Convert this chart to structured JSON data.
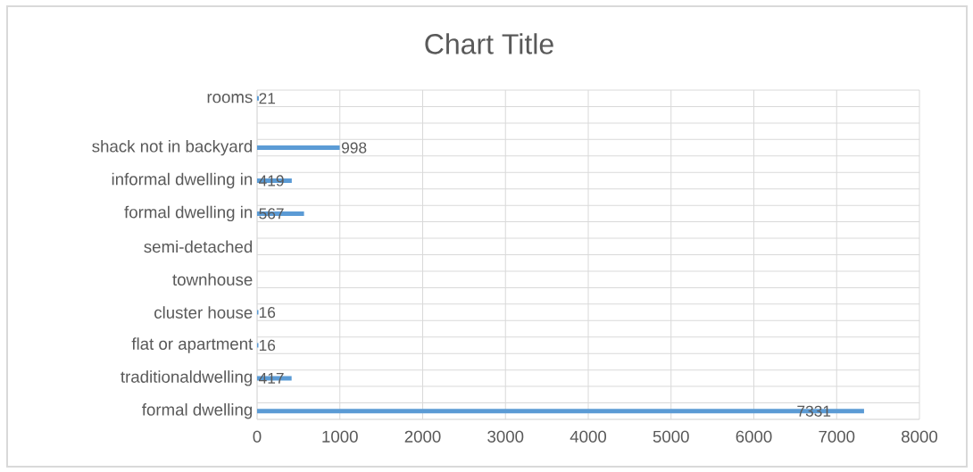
{
  "chart_data": {
    "type": "bar",
    "orientation": "horizontal",
    "title": "Chart Title",
    "categories": [
      "rooms",
      null,
      null,
      "shack not in backyard",
      null,
      "informal dwelling in",
      null,
      "formal dwelling in",
      null,
      "semi-detached",
      null,
      "townhouse",
      null,
      "cluster house",
      null,
      "flat or apartment",
      null,
      "traditionaldwelling",
      null,
      "formal dwelling"
    ],
    "values": [
      21,
      null,
      null,
      998,
      null,
      419,
      null,
      567,
      null,
      null,
      null,
      null,
      null,
      16,
      null,
      16,
      null,
      417,
      null,
      7331
    ],
    "color": "#5b9bd5",
    "xlim": [
      0,
      8000
    ],
    "xticks": [
      0,
      1000,
      2000,
      3000,
      4000,
      5000,
      6000,
      7000,
      8000
    ],
    "grid": true,
    "data_labels": true
  }
}
